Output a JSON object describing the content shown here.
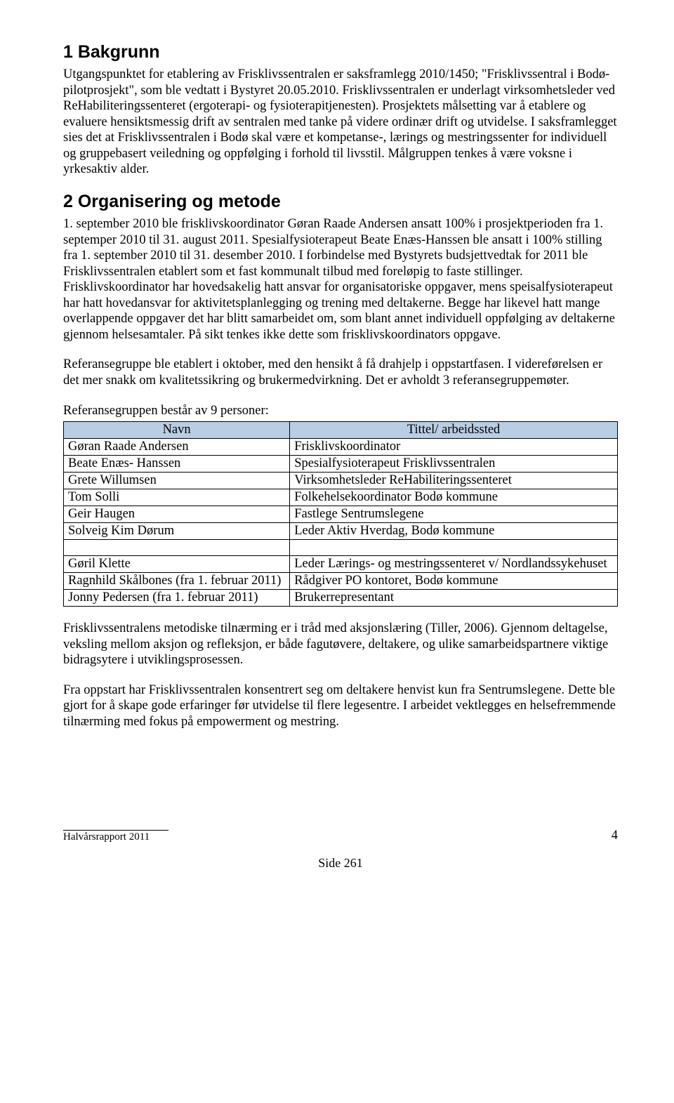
{
  "section1": {
    "heading": "1 Bakgrunn",
    "para": "Utgangspunktet for etablering av Frisklivssentralen er saksframlegg 2010/1450; \"Frisklivssentral i Bodø- pilotprosjekt\", som ble vedtatt i Bystyret 20.05.2010. Frisklivssentralen er underlagt virksomhetsleder ved ReHabiliteringssenteret (ergoterapi- og fysioterapitjenesten). Prosjektets målsetting var å etablere og evaluere hensiktsmessig drift av sentralen med tanke på videre ordinær drift og utvidelse. I saksframlegget sies det at Frisklivssentralen i Bodø skal være et kompetanse-, lærings og mestringssenter for individuell og gruppebasert veiledning og oppfølging i forhold til livsstil. Målgruppen tenkes å være voksne i yrkesaktiv alder."
  },
  "section2": {
    "heading": "2 Organisering og metode",
    "para1": "1. september 2010 ble frisklivskoordinator Gøran Raade Andersen ansatt 100% i prosjektperioden fra 1. septemper 2010 til 31. august 2011. Spesialfysioterapeut Beate Enæs-Hanssen ble ansatt i 100% stilling fra 1. september 2010 til 31. desember 2010. I forbindelse med Bystyrets budsjettvedtak for 2011 ble Frisklivssentralen etablert som et fast kommunalt tilbud med foreløpig to faste stillinger. Frisklivskoordinator har hovedsakelig hatt ansvar for organisatoriske oppgaver, mens speisalfysioterapeut har hatt hovedansvar for aktivitetsplanlegging og trening med deltakerne. Begge har likevel hatt mange overlappende oppgaver det har blitt samarbeidet om, som blant annet individuell oppfølging av deltakerne gjennom helsesamtaler. På sikt tenkes ikke dette som frisklivskoordinators oppgave.",
    "para2": "Referansegruppe ble etablert i oktober, med den hensikt å få drahjelp i oppstartfasen. I videreførelsen er det mer snakk om kvalitetssikring og brukermedvirkning. Det er avholdt 3 referansegruppemøter.",
    "para3": "Referansegruppen består av 9 personer:",
    "table": {
      "header": {
        "col1": "Navn",
        "col2": "Tittel/ arbeidssted"
      },
      "rows": [
        {
          "name": "Gøran Raade Andersen",
          "title": "Frisklivskoordinator"
        },
        {
          "name": "Beate Enæs- Hanssen",
          "title": "Spesialfysioterapeut Frisklivssentralen"
        },
        {
          "name": "Grete Willumsen",
          "title": "Virksomhetsleder ReHabiliteringssenteret"
        },
        {
          "name": "Tom Solli",
          "title": "Folkehelsekoordinator Bodø kommune"
        },
        {
          "name": "Geir Haugen",
          "title": "Fastlege Sentrumslegene"
        },
        {
          "name": "Solveig Kim Dørum",
          "title": "Leder Aktiv Hverdag, Bodø kommune"
        }
      ],
      "rows2": [
        {
          "name": "Gøril Klette",
          "title": "Leder Lærings- og mestringssenteret v/ Nordlandssykehuset"
        },
        {
          "name": "Ragnhild Skålbones (fra 1. februar 2011)",
          "title": "Rådgiver PO kontoret, Bodø kommune"
        },
        {
          "name": "Jonny Pedersen (fra 1. februar 2011)",
          "title": "Brukerrepresentant"
        }
      ]
    },
    "para4": "Frisklivssentralens metodiske tilnærming er i tråd med aksjonslæring (Tiller, 2006). Gjennom deltagelse, veksling mellom aksjon og refleksjon, er både fagutøvere, deltakere, og ulike samarbeidspartnere viktige bidragsytere i utviklingsprosessen.",
    "para5": "Fra oppstart har Frisklivssentralen konsentrert seg om deltakere henvist kun fra Sentrumslegene. Dette ble gjort for å skape gode erfaringer før utvidelse til flere legesentre. I arbeidet vektlegges en helsefremmende tilnærming med fokus på empowerment og mestring."
  },
  "footer": {
    "left": "Halvårsrapport 2011",
    "pagenum_right": "4",
    "side": "Side 261"
  },
  "colors": {
    "table_header_bg": "#b9cde5",
    "border": "#000000",
    "text": "#000000",
    "background": "#ffffff"
  }
}
